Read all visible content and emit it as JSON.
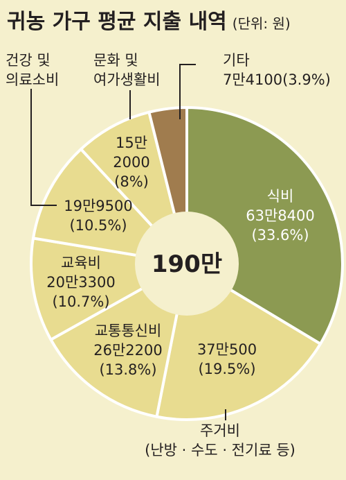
{
  "title": "귀농 가구 평균 지출 내역",
  "unit": "(단위: 원)",
  "chart_data": {
    "type": "pie",
    "title": "귀농 가구 평균 지출 내역",
    "unit": "(단위: 원)",
    "center_label": "190만",
    "total": "190만",
    "slices": [
      {
        "name": "식비",
        "value_label": "63만8400",
        "percent_label": "(33.6%)",
        "value": 638400,
        "percent": 33.6,
        "color": "#8c9a52",
        "text_color": "#ffffff"
      },
      {
        "name": "주거비",
        "sub": "(난방 · 수도 ·  전기료 등)",
        "value_label": "37만500",
        "percent_label": "(19.5%)",
        "value": 370500,
        "percent": 19.5,
        "color": "#e8dc90",
        "text_color": "#231f20"
      },
      {
        "name": "교통통신비",
        "value_label": "26만2200",
        "percent_label": "(13.8%)",
        "value": 262200,
        "percent": 13.8,
        "color": "#e8dc90",
        "text_color": "#231f20"
      },
      {
        "name": "교육비",
        "value_label": "20만3300",
        "percent_label": "(10.7%)",
        "value": 203300,
        "percent": 10.7,
        "color": "#e8dc90",
        "text_color": "#231f20"
      },
      {
        "name_lines": [
          "건강 및",
          "의료소비"
        ],
        "value_label": "19만9500",
        "percent_label": "(10.5%)",
        "value": 199500,
        "percent": 10.5,
        "color": "#e8dc90",
        "text_color": "#231f20"
      },
      {
        "name_lines": [
          "문화 및",
          "여가생활비"
        ],
        "value_label_lines": [
          "15만",
          "2000"
        ],
        "percent_label": "(8%)",
        "value": 152000,
        "percent": 8.0,
        "color": "#e8dc90",
        "text_color": "#231f20"
      },
      {
        "name": "기타",
        "value_label": "7만4100",
        "percent_label": "(3.9%)",
        "value": 74100,
        "percent": 3.9,
        "color": "#a07c4e",
        "text_color": "#231f20"
      }
    ]
  }
}
